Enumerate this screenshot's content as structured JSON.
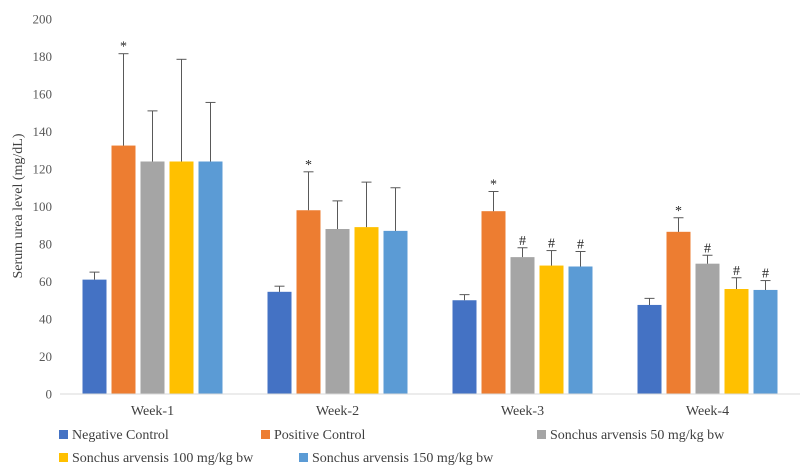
{
  "chart_data": {
    "type": "bar",
    "title": "",
    "xlabel": "",
    "ylabel": "Serum urea level (mg/dL)",
    "ylim": [
      0,
      200
    ],
    "yticks": [
      0,
      20,
      40,
      60,
      80,
      100,
      120,
      140,
      160,
      180,
      200
    ],
    "grid": false,
    "legend_position": "bottom",
    "error_bars": "upper only",
    "categories": [
      "Week-1",
      "Week-2",
      "Week-3",
      "Week-4"
    ],
    "series": [
      {
        "name": "Negative Control",
        "color": "#4472C4",
        "values": [
          61,
          54.5,
          50,
          47.5
        ],
        "errors": [
          4,
          3,
          3,
          3.5
        ],
        "annotations": [
          "",
          "",
          "",
          ""
        ]
      },
      {
        "name": "Positive Control",
        "color": "#ED7D31",
        "values": [
          132.5,
          98,
          97.5,
          86.5
        ],
        "errors": [
          49,
          20.5,
          10.5,
          7.5
        ],
        "annotations": [
          "*",
          "*",
          "*",
          "*"
        ]
      },
      {
        "name": "Sonchus arvensis  50 mg/kg bw",
        "color": "#A5A5A5",
        "values": [
          124,
          88,
          73,
          69.5
        ],
        "errors": [
          27,
          15,
          5,
          4.5
        ],
        "annotations": [
          "",
          "",
          "#",
          "#"
        ]
      },
      {
        "name": "Sonchus arvensis  100 mg/kg bw",
        "color": "#FFC000",
        "values": [
          124,
          89,
          68.5,
          56
        ],
        "errors": [
          54.5,
          24,
          8,
          6
        ],
        "annotations": [
          "",
          "",
          "#",
          "#"
        ]
      },
      {
        "name": "Sonchus arvensis  150 mg/kg bw",
        "color": "#5B9BD5",
        "values": [
          124,
          87,
          68,
          55.5
        ],
        "errors": [
          31.5,
          23,
          8,
          5
        ],
        "annotations": [
          "",
          "",
          "#",
          "#"
        ]
      }
    ]
  }
}
